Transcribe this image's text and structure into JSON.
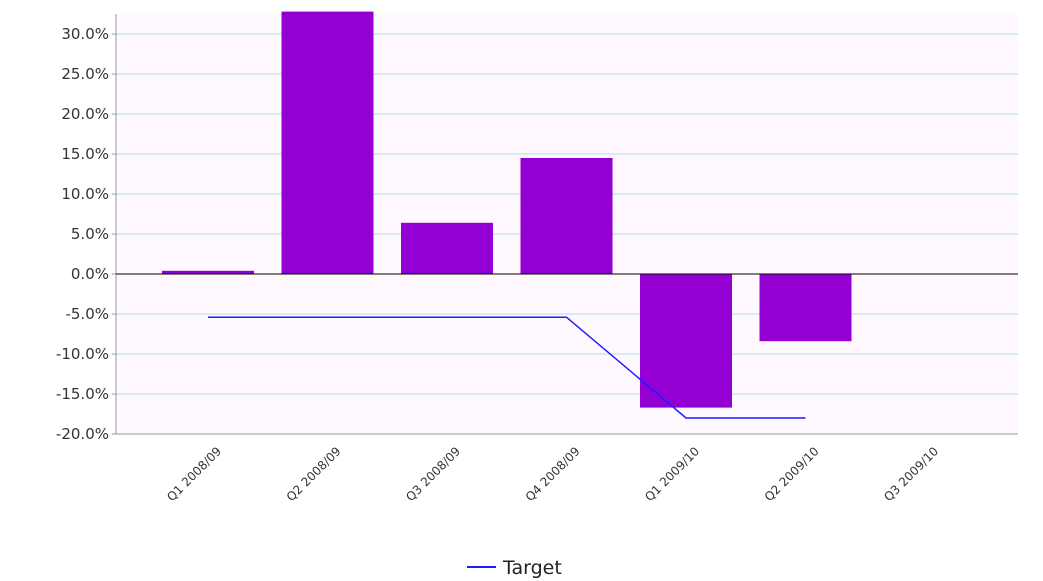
{
  "chart_data": {
    "type": "bar",
    "categories": [
      "Q1 2008/09",
      "Q2 2008/09",
      "Q3 2008/09",
      "Q4 2008/09",
      "Q1 2009/10",
      "Q2 2009/10",
      "Q3 2009/10"
    ],
    "series": [
      {
        "type": "bar",
        "values": [
          0.4,
          32.8,
          6.4,
          14.5,
          -16.7,
          -8.4,
          null
        ],
        "color": "#9400d3"
      },
      {
        "name": "Target",
        "type": "line",
        "values": [
          -5.4,
          -5.4,
          -5.4,
          -5.4,
          -18.0,
          -18.0,
          null
        ],
        "color": "#1c1cff"
      }
    ],
    "yticks": [
      "30.0%",
      "25.0%",
      "20.0%",
      "15.0%",
      "10.0%",
      "5.0%",
      "0.0%",
      "-5.0%",
      "-10.0%",
      "-15.0%",
      "-20.0%"
    ],
    "ylim": [
      -20,
      32.5
    ],
    "grid": true,
    "legend": {
      "position": "bottom-center"
    },
    "colors": {
      "plot_background": "#fff8ff",
      "grid": "#b0dde6",
      "axis": "#000000"
    }
  }
}
